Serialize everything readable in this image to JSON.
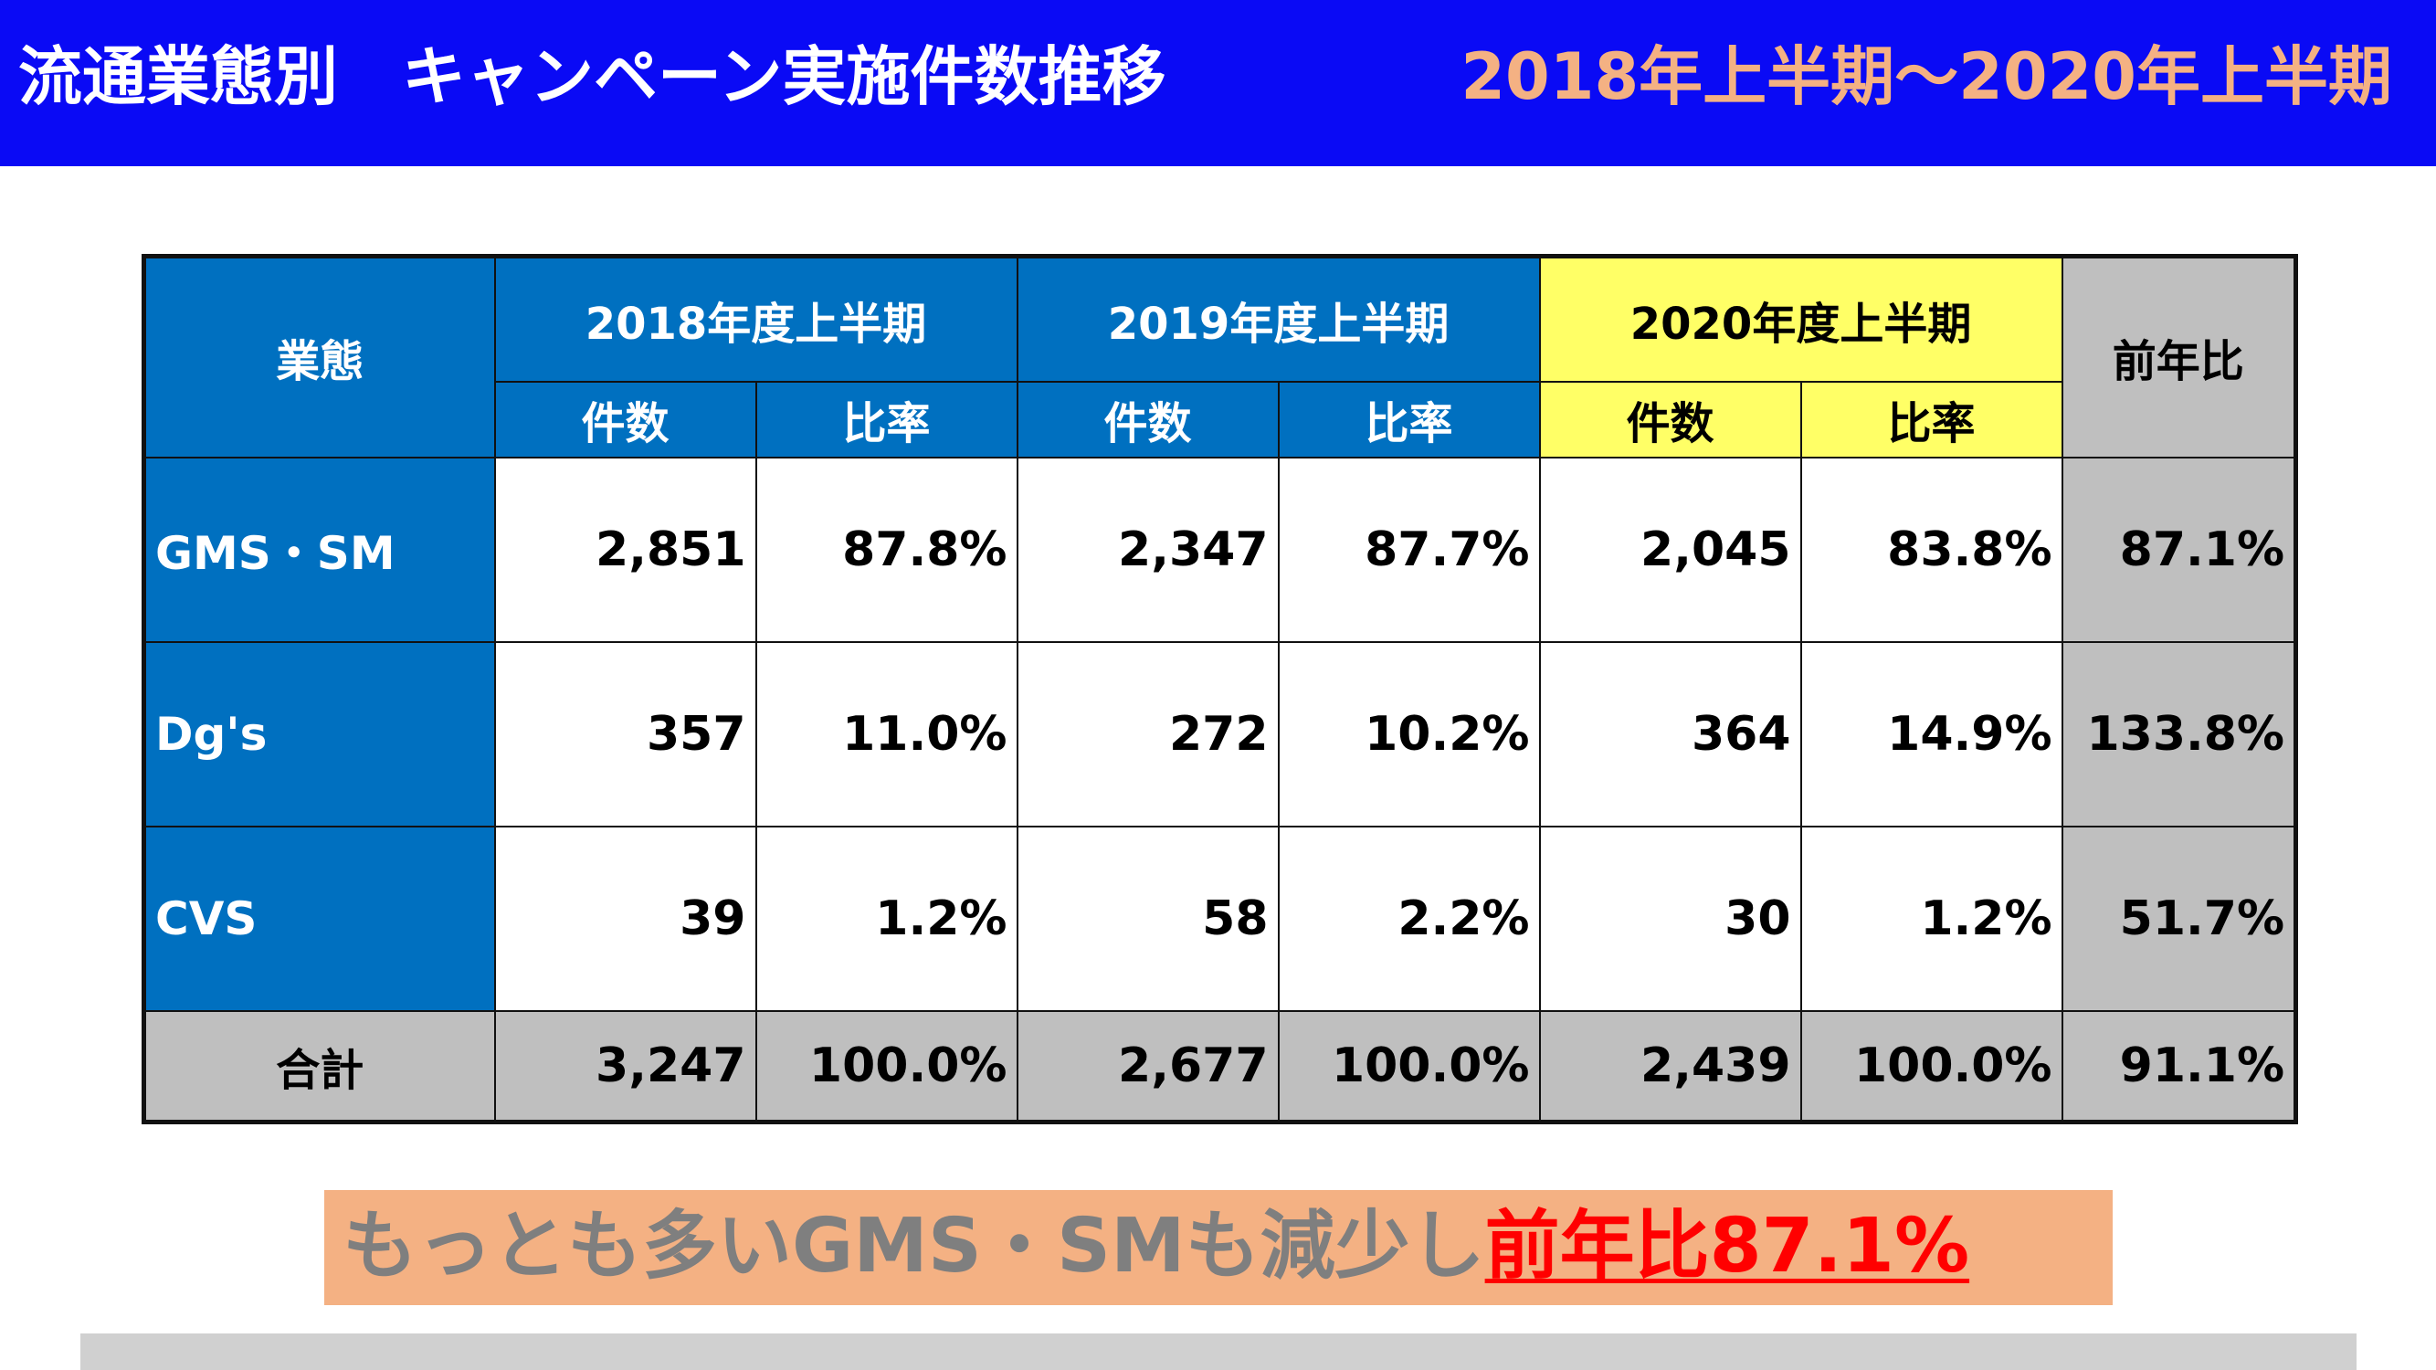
{
  "header": {
    "title": "流通業態別　キャンペーン実施件数推移",
    "period": "2018年上半期～2020年上半期"
  },
  "table": {
    "col_category": "業態",
    "years": [
      "2018年度上半期",
      "2019年度上半期",
      "2020年度上半期"
    ],
    "sub_count": "件数",
    "sub_ratio": "比率",
    "col_yoy": "前年比",
    "rows": [
      {
        "category": "GMS・SM",
        "c2018": "2,851",
        "r2018": "87.8%",
        "c2019": "2,347",
        "r2019": "87.7%",
        "c2020": "2,045",
        "r2020": "83.8%",
        "yoy": "87.1%"
      },
      {
        "category": "Dg's",
        "c2018": "357",
        "r2018": "11.0%",
        "c2019": "272",
        "r2019": "10.2%",
        "c2020": "364",
        "r2020": "14.9%",
        "yoy": "133.8%"
      },
      {
        "category": "CVS",
        "c2018": "39",
        "r2018": "1.2%",
        "c2019": "58",
        "r2019": "2.2%",
        "c2020": "30",
        "r2020": "1.2%",
        "yoy": "51.7%"
      }
    ],
    "total": {
      "category": "合計",
      "c2018": "3,247",
      "r2018": "100.0%",
      "c2019": "2,677",
      "r2019": "100.0%",
      "c2020": "2,439",
      "r2020": "100.0%",
      "yoy": "91.1%"
    }
  },
  "callout": {
    "text_plain": "もっとも多いGMS・SMも減少し",
    "text_highlight": "前年比87.1%"
  },
  "colors": {
    "header_bg": "#0A0AF5",
    "period_text": "#F4B183",
    "blue_header": "#0070C0",
    "yellow_header": "#FFFF66",
    "gray_cell": "#BFBFBF",
    "callout_bg": "#F4B183",
    "highlight_red": "#FF0000"
  }
}
